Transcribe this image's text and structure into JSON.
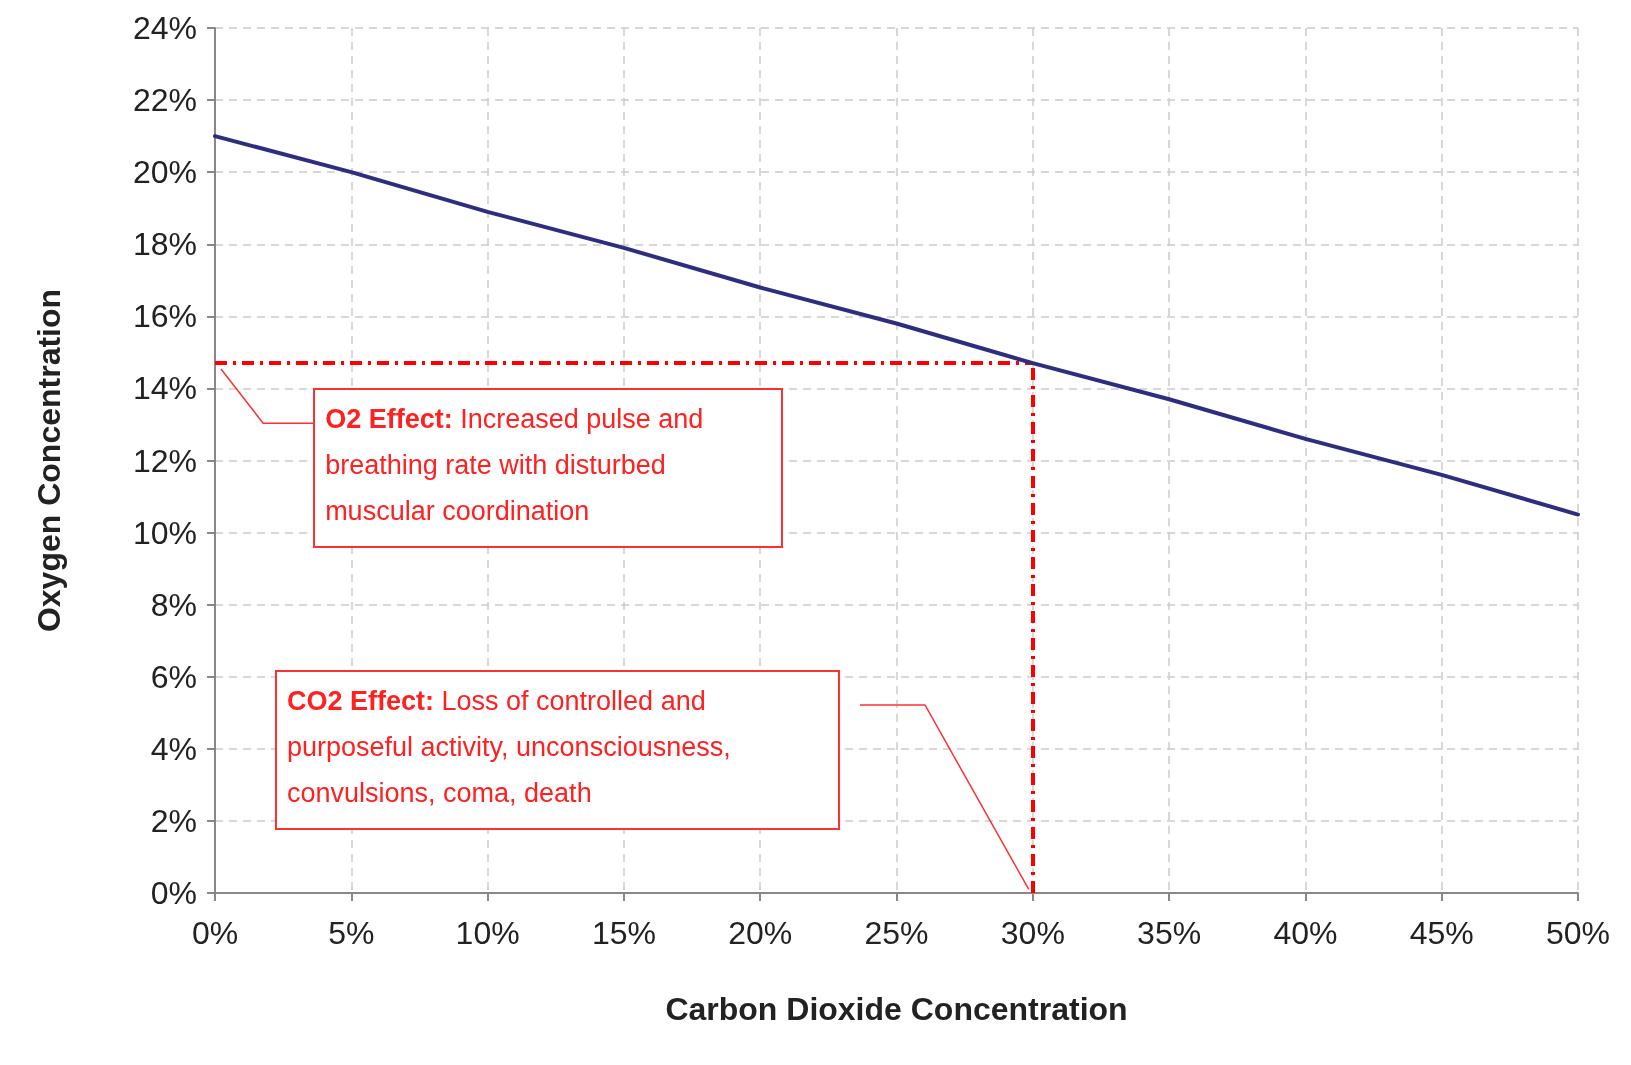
{
  "chart_data": {
    "type": "line",
    "xlabel": "Carbon Dioxide Concentration",
    "ylabel": "Oxygen Concentration",
    "x": [
      0,
      5,
      10,
      15,
      20,
      25,
      30,
      35,
      40,
      45,
      50
    ],
    "series": [
      {
        "color": "#2e2e80",
        "values": [
          21,
          20,
          18.9,
          17.9,
          16.8,
          15.8,
          14.7,
          13.7,
          12.6,
          11.6,
          10.5
        ]
      }
    ],
    "xlim": [
      0,
      50
    ],
    "xticks": [
      {
        "value": 0,
        "label": "0%"
      },
      {
        "value": 5,
        "label": "5%"
      },
      {
        "value": 10,
        "label": "10%"
      },
      {
        "value": 15,
        "label": "15%"
      },
      {
        "value": 20,
        "label": "20%"
      },
      {
        "value": 25,
        "label": "25%"
      },
      {
        "value": 30,
        "label": "30%"
      },
      {
        "value": 35,
        "label": "35%"
      },
      {
        "value": 40,
        "label": "40%"
      },
      {
        "value": 45,
        "label": "45%"
      },
      {
        "value": 50,
        "label": "50%"
      }
    ],
    "ylim": [
      0,
      24
    ],
    "yticks": [
      {
        "value": 0,
        "label": "0%"
      },
      {
        "value": 2,
        "label": "2%"
      },
      {
        "value": 4,
        "label": "4%"
      },
      {
        "value": 6,
        "label": "6%"
      },
      {
        "value": 8,
        "label": "8%"
      },
      {
        "value": 10,
        "label": "10%"
      },
      {
        "value": 12,
        "label": "12%"
      },
      {
        "value": 14,
        "label": "14%"
      },
      {
        "value": 16,
        "label": "16%"
      },
      {
        "value": 18,
        "label": "18%"
      },
      {
        "value": 20,
        "label": "20%"
      },
      {
        "value": 22,
        "label": "22%"
      },
      {
        "value": 24,
        "label": "24%"
      }
    ],
    "ref_lines": [
      {
        "axis": "y",
        "value": 14.7,
        "color": "#ff0000",
        "line_style": "dashed"
      },
      {
        "axis": "x",
        "value": 30,
        "color": "#ff0000",
        "line_style": "dashed"
      }
    ],
    "annotations": [
      "O2 Effect: Increased pulse and breathing rate with disturbed muscular coordination",
      "CO2 Effect: Loss of controlled and purposeful activity, unconsciousness, convulsions, coma, death"
    ],
    "grid": true,
    "marker": "none",
    "line_style": "solid"
  }
}
